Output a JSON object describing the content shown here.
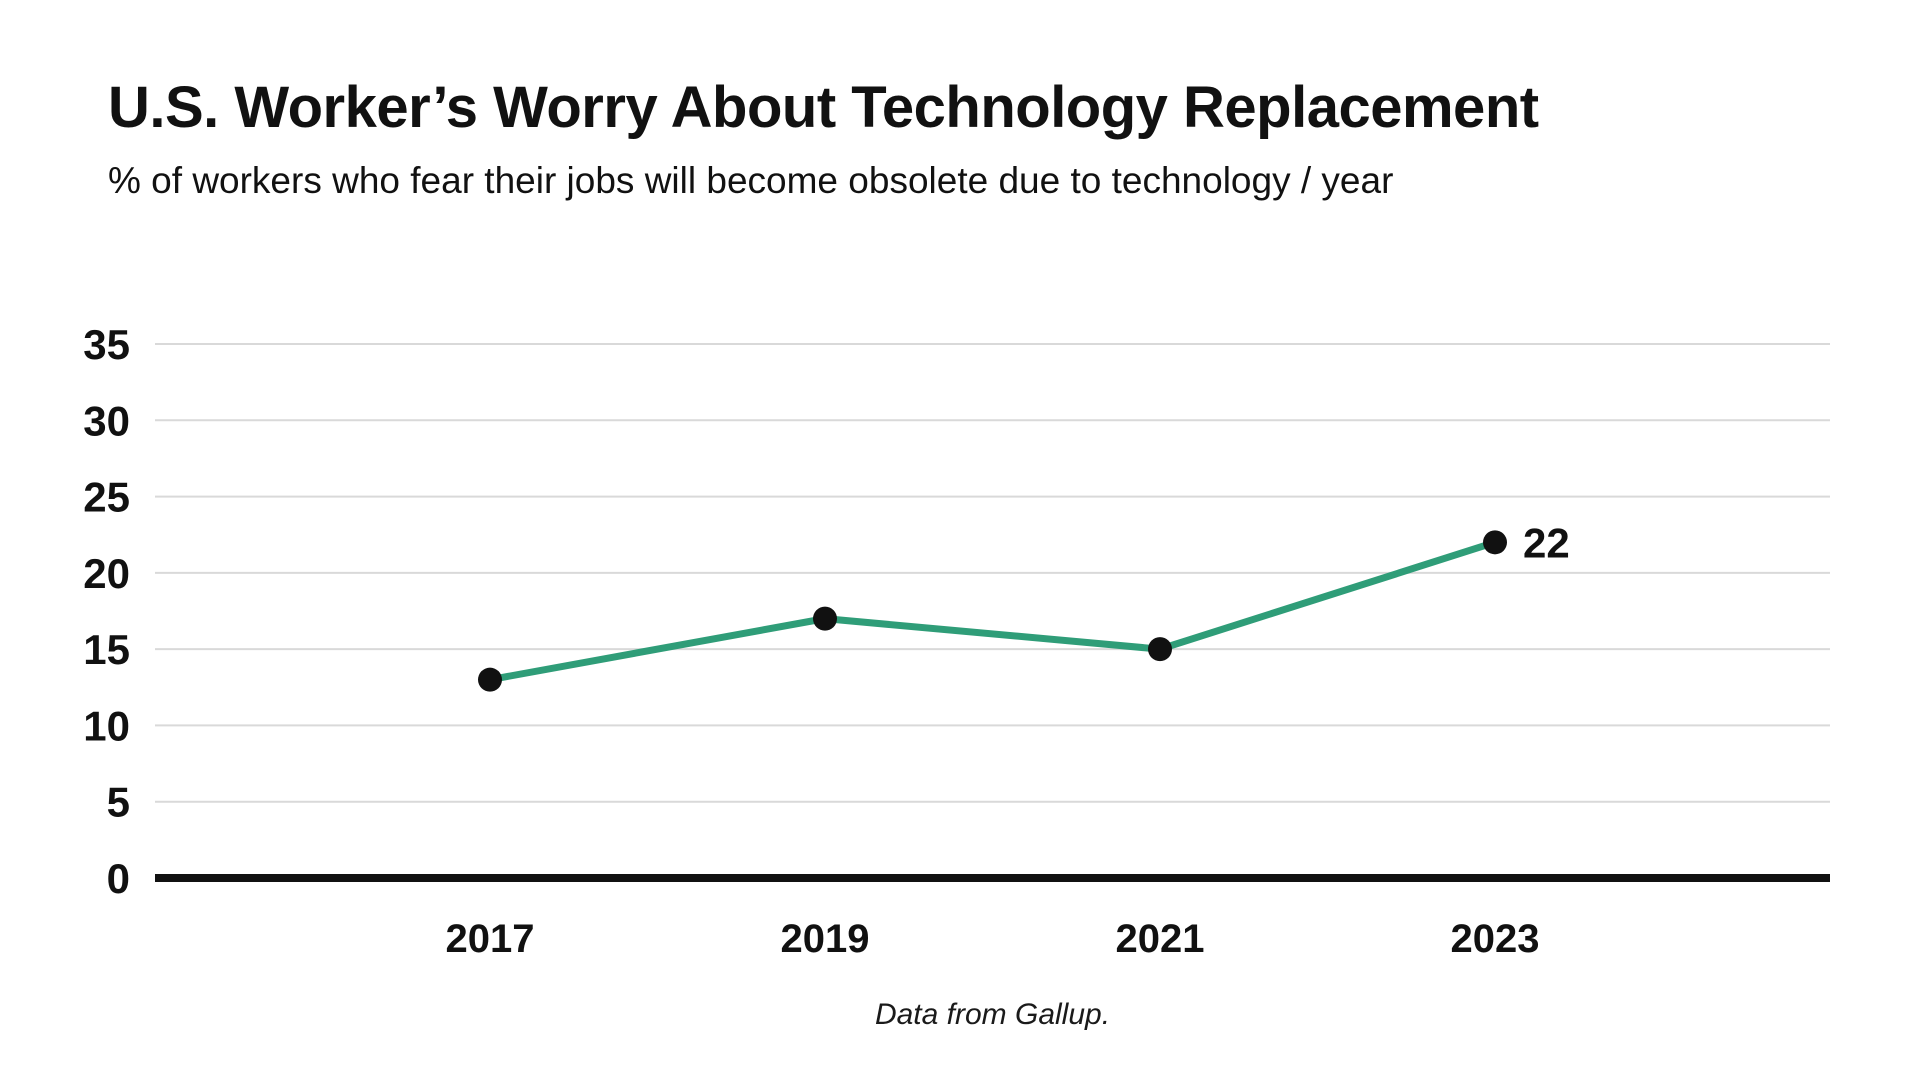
{
  "title": "U.S. Worker’s Worry About Technology Replacement",
  "subtitle": "% of workers who fear their jobs will become obsolete due to technology / year",
  "footer": "Data from Gallup.",
  "colors": {
    "line": "#2f9d78",
    "dot": "#111111",
    "grid": "#d9d9d9",
    "axis": "#111111",
    "text": "#111111",
    "background": "#ffffff"
  },
  "chart_data": {
    "type": "line",
    "categories": [
      "2017",
      "2019",
      "2021",
      "2023"
    ],
    "x": [
      2017,
      2019,
      2021,
      2023
    ],
    "values": [
      13,
      17,
      15,
      22
    ],
    "point_labels": [
      "",
      "",
      "",
      "22"
    ],
    "series": [
      {
        "name": "% of workers who fear their jobs will become obsolete",
        "values": [
          13,
          17,
          15,
          22
        ]
      }
    ],
    "title": "U.S. Worker’s Worry About Technology Replacement",
    "subtitle": "% of workers who fear their jobs will become obsolete due to technology / year",
    "xlabel": "",
    "ylabel": "",
    "yticks": [
      0,
      5,
      10,
      15,
      20,
      25,
      30,
      35
    ],
    "ylim": [
      0,
      35
    ],
    "grid": "horizontal",
    "legend": "none",
    "source": "Data from Gallup."
  }
}
